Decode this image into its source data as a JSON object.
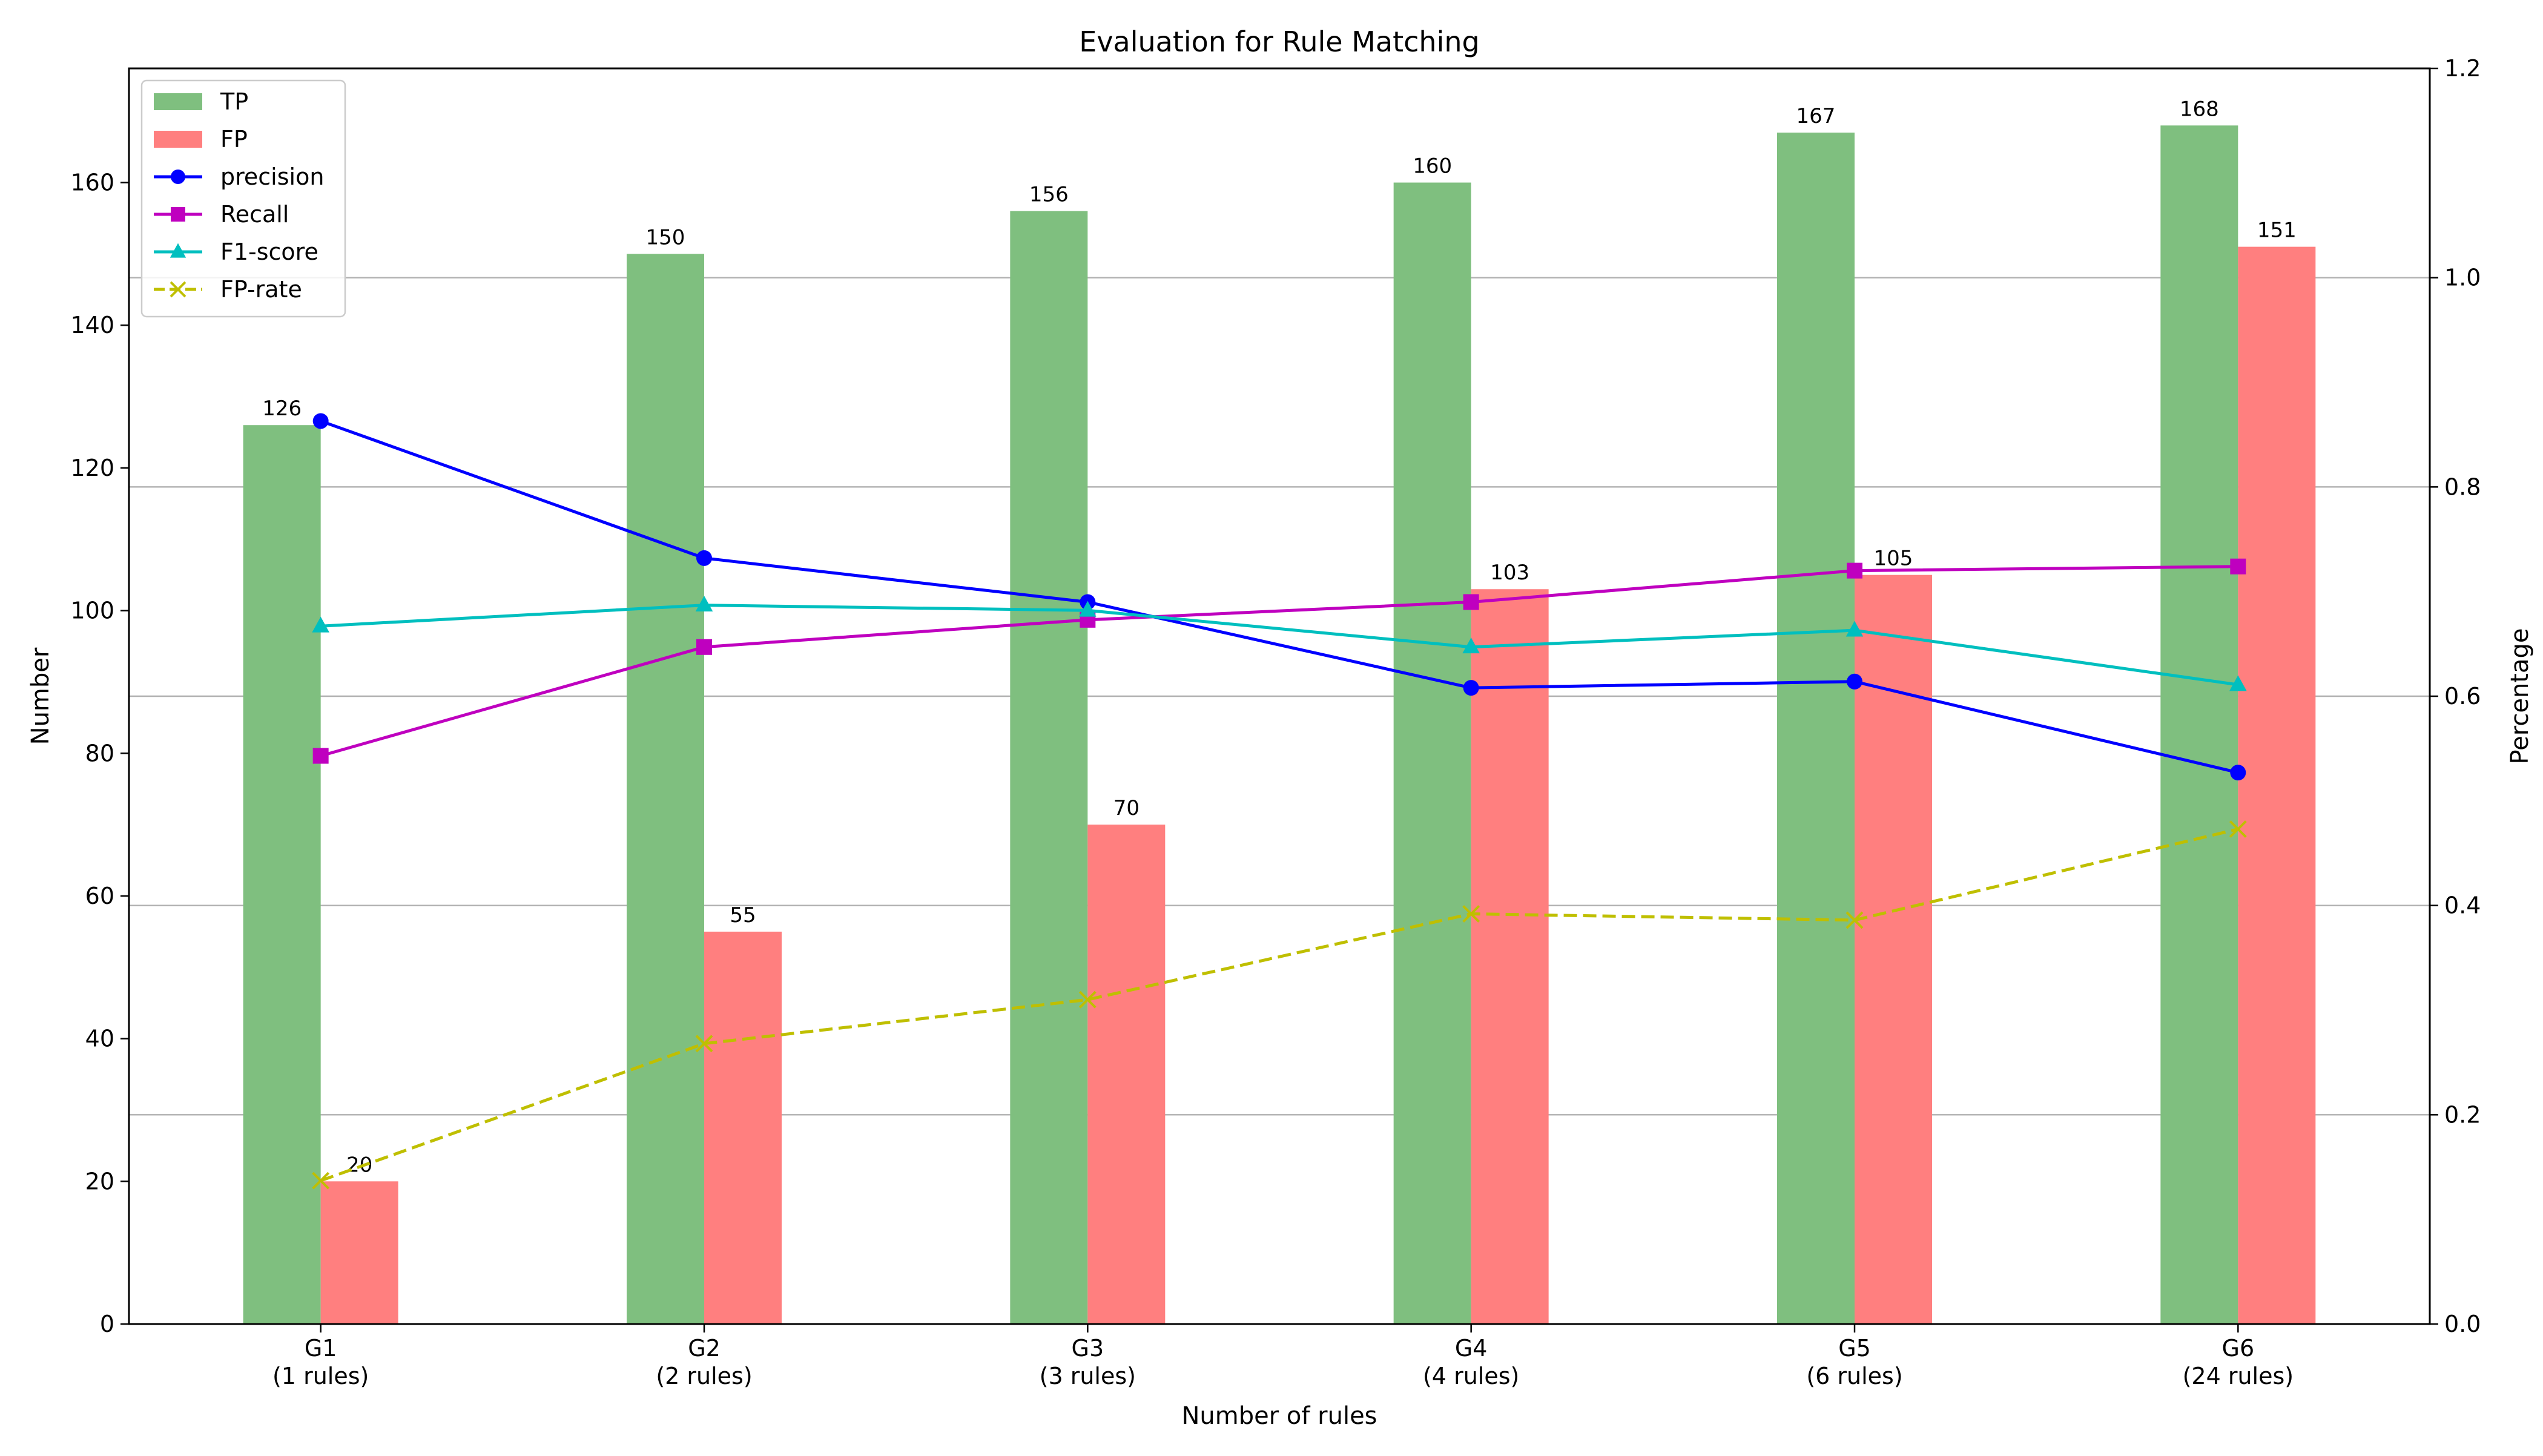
{
  "chart_data": {
    "type": "bar",
    "title": "Evaluation for Rule Matching",
    "xlabel": "Number of rules",
    "ylabel": "Number",
    "y2label": "Percentage",
    "categories": [
      "G1\n(1 rules)",
      "G2\n(2 rules)",
      "G3\n(3 rules)",
      "G4\n(4 rules)",
      "G5\n(6 rules)",
      "G6\n(24 rules)"
    ],
    "ylim": [
      0,
      176
    ],
    "y2lim": [
      0,
      1.2
    ],
    "yticks": [
      0,
      20,
      40,
      60,
      80,
      100,
      120,
      140,
      160
    ],
    "y2ticks": [
      "0.0",
      "0.2",
      "0.4",
      "0.6",
      "0.8",
      "1.0",
      "1.2"
    ],
    "grid": "right-axis horizontal",
    "legend_position": "upper-left",
    "bar_series": [
      {
        "name": "TP",
        "color": "#7fbf7f",
        "values": [
          126,
          150,
          156,
          160,
          167,
          168
        ],
        "labels": [
          "126",
          "150",
          "156",
          "160",
          "167",
          "168"
        ]
      },
      {
        "name": "FP",
        "color": "#ff7f7f",
        "values": [
          20,
          55,
          70,
          103,
          105,
          151
        ],
        "labels": [
          "20",
          "55",
          "70",
          "103",
          "105",
          "151"
        ]
      }
    ],
    "line_series": [
      {
        "name": "precision",
        "color": "#0000ff",
        "marker": "circle",
        "dashed": false,
        "values": [
          0.863,
          0.732,
          0.69,
          0.608,
          0.614,
          0.527
        ]
      },
      {
        "name": "Recall",
        "color": "#bf00bf",
        "marker": "square",
        "dashed": false,
        "values": [
          0.543,
          0.647,
          0.673,
          0.69,
          0.72,
          0.724
        ]
      },
      {
        "name": "F1-score",
        "color": "#00bfbf",
        "marker": "triangle",
        "dashed": false,
        "values": [
          0.667,
          0.687,
          0.682,
          0.647,
          0.663,
          0.611
        ]
      },
      {
        "name": "FP-rate",
        "color": "#bfbf00",
        "marker": "x",
        "dashed": true,
        "values": [
          0.137,
          0.268,
          0.31,
          0.392,
          0.386,
          0.473
        ]
      }
    ]
  }
}
